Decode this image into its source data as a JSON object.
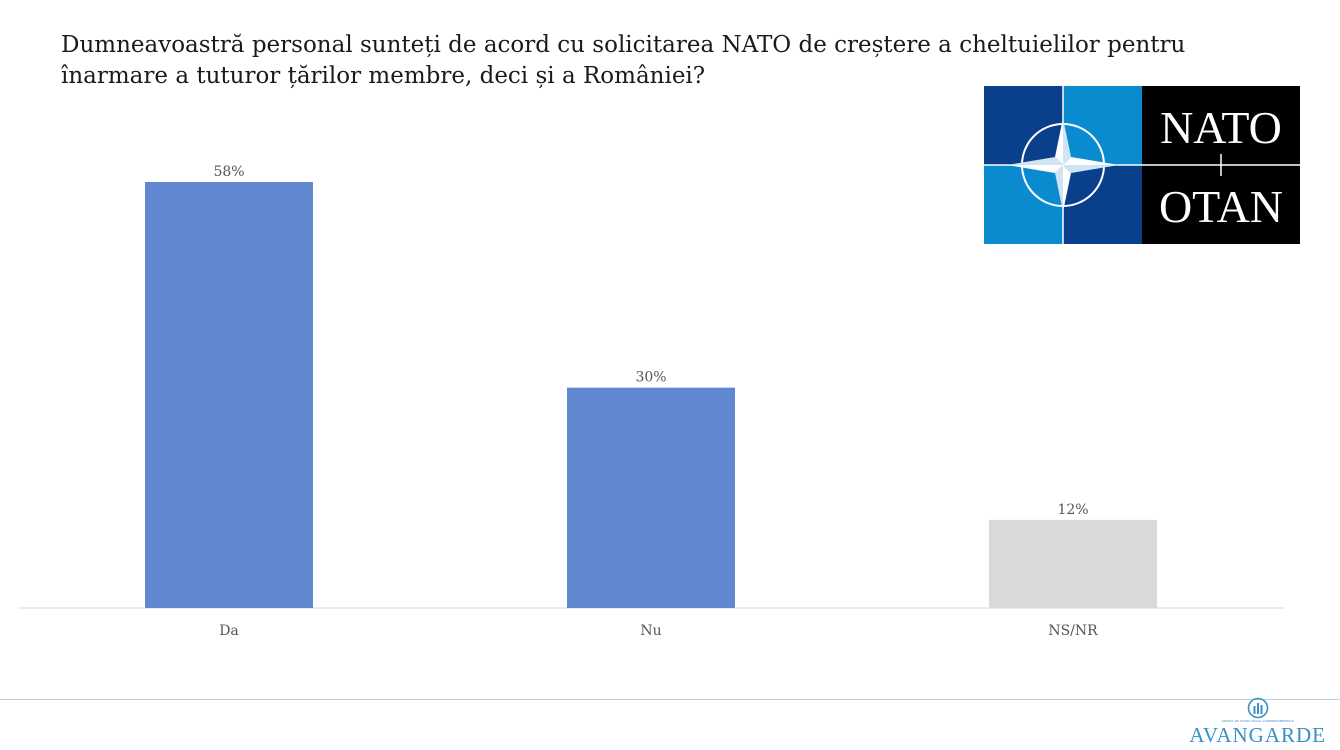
{
  "question": "Dumneavoastră personal sunteți de acord cu solicitarea NATO de creștere a cheltuielilor pentru înarmare a tuturor țărilor membre, deci și a României?",
  "logo": {
    "top_text": "NATO",
    "bottom_text": "OTAN",
    "colors": {
      "left": "#0a3f8c",
      "right_light": "#0a8bd0",
      "text_panel": "#000000",
      "star": "#ffffff"
    }
  },
  "footer": {
    "brand": "AVANGARDE",
    "tagline": "GRUPUL DE STUDII SOCIAL-COMPORTAMENTALE"
  },
  "chart_data": {
    "type": "bar",
    "categories": [
      "Da",
      "Nu",
      "NS/NR"
    ],
    "values": [
      58,
      30,
      12
    ],
    "value_labels": [
      "58%",
      "30%",
      "12%"
    ],
    "colors": [
      "#6087d0",
      "#6087d0",
      "#d9d9d9"
    ],
    "ylim": [
      0,
      58
    ],
    "grid": false,
    "legend": "none"
  }
}
